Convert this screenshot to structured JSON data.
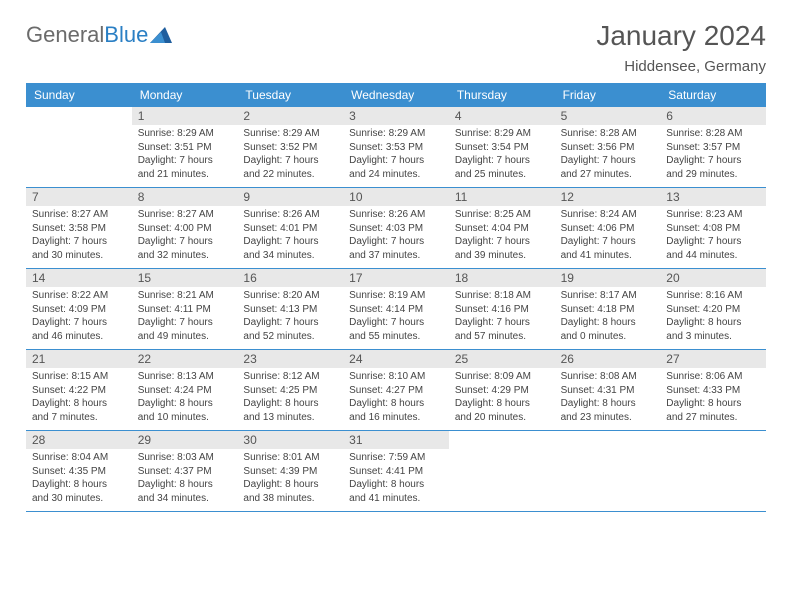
{
  "brand": {
    "part1": "General",
    "part2": "Blue"
  },
  "title": {
    "month": "January 2024",
    "location": "Hiddensee, Germany"
  },
  "accent_color": "#3b8fd0",
  "logo_triangle_color": "#1f5e9e",
  "dayHeaders": [
    "Sunday",
    "Monday",
    "Tuesday",
    "Wednesday",
    "Thursday",
    "Friday",
    "Saturday"
  ],
  "weeks": [
    [
      null,
      {
        "n": "1",
        "sr": "Sunrise: 8:29 AM",
        "ss": "Sunset: 3:51 PM",
        "d1": "Daylight: 7 hours",
        "d2": "and 21 minutes."
      },
      {
        "n": "2",
        "sr": "Sunrise: 8:29 AM",
        "ss": "Sunset: 3:52 PM",
        "d1": "Daylight: 7 hours",
        "d2": "and 22 minutes."
      },
      {
        "n": "3",
        "sr": "Sunrise: 8:29 AM",
        "ss": "Sunset: 3:53 PM",
        "d1": "Daylight: 7 hours",
        "d2": "and 24 minutes."
      },
      {
        "n": "4",
        "sr": "Sunrise: 8:29 AM",
        "ss": "Sunset: 3:54 PM",
        "d1": "Daylight: 7 hours",
        "d2": "and 25 minutes."
      },
      {
        "n": "5",
        "sr": "Sunrise: 8:28 AM",
        "ss": "Sunset: 3:56 PM",
        "d1": "Daylight: 7 hours",
        "d2": "and 27 minutes."
      },
      {
        "n": "6",
        "sr": "Sunrise: 8:28 AM",
        "ss": "Sunset: 3:57 PM",
        "d1": "Daylight: 7 hours",
        "d2": "and 29 minutes."
      }
    ],
    [
      {
        "n": "7",
        "sr": "Sunrise: 8:27 AM",
        "ss": "Sunset: 3:58 PM",
        "d1": "Daylight: 7 hours",
        "d2": "and 30 minutes."
      },
      {
        "n": "8",
        "sr": "Sunrise: 8:27 AM",
        "ss": "Sunset: 4:00 PM",
        "d1": "Daylight: 7 hours",
        "d2": "and 32 minutes."
      },
      {
        "n": "9",
        "sr": "Sunrise: 8:26 AM",
        "ss": "Sunset: 4:01 PM",
        "d1": "Daylight: 7 hours",
        "d2": "and 34 minutes."
      },
      {
        "n": "10",
        "sr": "Sunrise: 8:26 AM",
        "ss": "Sunset: 4:03 PM",
        "d1": "Daylight: 7 hours",
        "d2": "and 37 minutes."
      },
      {
        "n": "11",
        "sr": "Sunrise: 8:25 AM",
        "ss": "Sunset: 4:04 PM",
        "d1": "Daylight: 7 hours",
        "d2": "and 39 minutes."
      },
      {
        "n": "12",
        "sr": "Sunrise: 8:24 AM",
        "ss": "Sunset: 4:06 PM",
        "d1": "Daylight: 7 hours",
        "d2": "and 41 minutes."
      },
      {
        "n": "13",
        "sr": "Sunrise: 8:23 AM",
        "ss": "Sunset: 4:08 PM",
        "d1": "Daylight: 7 hours",
        "d2": "and 44 minutes."
      }
    ],
    [
      {
        "n": "14",
        "sr": "Sunrise: 8:22 AM",
        "ss": "Sunset: 4:09 PM",
        "d1": "Daylight: 7 hours",
        "d2": "and 46 minutes."
      },
      {
        "n": "15",
        "sr": "Sunrise: 8:21 AM",
        "ss": "Sunset: 4:11 PM",
        "d1": "Daylight: 7 hours",
        "d2": "and 49 minutes."
      },
      {
        "n": "16",
        "sr": "Sunrise: 8:20 AM",
        "ss": "Sunset: 4:13 PM",
        "d1": "Daylight: 7 hours",
        "d2": "and 52 minutes."
      },
      {
        "n": "17",
        "sr": "Sunrise: 8:19 AM",
        "ss": "Sunset: 4:14 PM",
        "d1": "Daylight: 7 hours",
        "d2": "and 55 minutes."
      },
      {
        "n": "18",
        "sr": "Sunrise: 8:18 AM",
        "ss": "Sunset: 4:16 PM",
        "d1": "Daylight: 7 hours",
        "d2": "and 57 minutes."
      },
      {
        "n": "19",
        "sr": "Sunrise: 8:17 AM",
        "ss": "Sunset: 4:18 PM",
        "d1": "Daylight: 8 hours",
        "d2": "and 0 minutes."
      },
      {
        "n": "20",
        "sr": "Sunrise: 8:16 AM",
        "ss": "Sunset: 4:20 PM",
        "d1": "Daylight: 8 hours",
        "d2": "and 3 minutes."
      }
    ],
    [
      {
        "n": "21",
        "sr": "Sunrise: 8:15 AM",
        "ss": "Sunset: 4:22 PM",
        "d1": "Daylight: 8 hours",
        "d2": "and 7 minutes."
      },
      {
        "n": "22",
        "sr": "Sunrise: 8:13 AM",
        "ss": "Sunset: 4:24 PM",
        "d1": "Daylight: 8 hours",
        "d2": "and 10 minutes."
      },
      {
        "n": "23",
        "sr": "Sunrise: 8:12 AM",
        "ss": "Sunset: 4:25 PM",
        "d1": "Daylight: 8 hours",
        "d2": "and 13 minutes."
      },
      {
        "n": "24",
        "sr": "Sunrise: 8:10 AM",
        "ss": "Sunset: 4:27 PM",
        "d1": "Daylight: 8 hours",
        "d2": "and 16 minutes."
      },
      {
        "n": "25",
        "sr": "Sunrise: 8:09 AM",
        "ss": "Sunset: 4:29 PM",
        "d1": "Daylight: 8 hours",
        "d2": "and 20 minutes."
      },
      {
        "n": "26",
        "sr": "Sunrise: 8:08 AM",
        "ss": "Sunset: 4:31 PM",
        "d1": "Daylight: 8 hours",
        "d2": "and 23 minutes."
      },
      {
        "n": "27",
        "sr": "Sunrise: 8:06 AM",
        "ss": "Sunset: 4:33 PM",
        "d1": "Daylight: 8 hours",
        "d2": "and 27 minutes."
      }
    ],
    [
      {
        "n": "28",
        "sr": "Sunrise: 8:04 AM",
        "ss": "Sunset: 4:35 PM",
        "d1": "Daylight: 8 hours",
        "d2": "and 30 minutes."
      },
      {
        "n": "29",
        "sr": "Sunrise: 8:03 AM",
        "ss": "Sunset: 4:37 PM",
        "d1": "Daylight: 8 hours",
        "d2": "and 34 minutes."
      },
      {
        "n": "30",
        "sr": "Sunrise: 8:01 AM",
        "ss": "Sunset: 4:39 PM",
        "d1": "Daylight: 8 hours",
        "d2": "and 38 minutes."
      },
      {
        "n": "31",
        "sr": "Sunrise: 7:59 AM",
        "ss": "Sunset: 4:41 PM",
        "d1": "Daylight: 8 hours",
        "d2": "and 41 minutes."
      },
      null,
      null,
      null
    ]
  ]
}
